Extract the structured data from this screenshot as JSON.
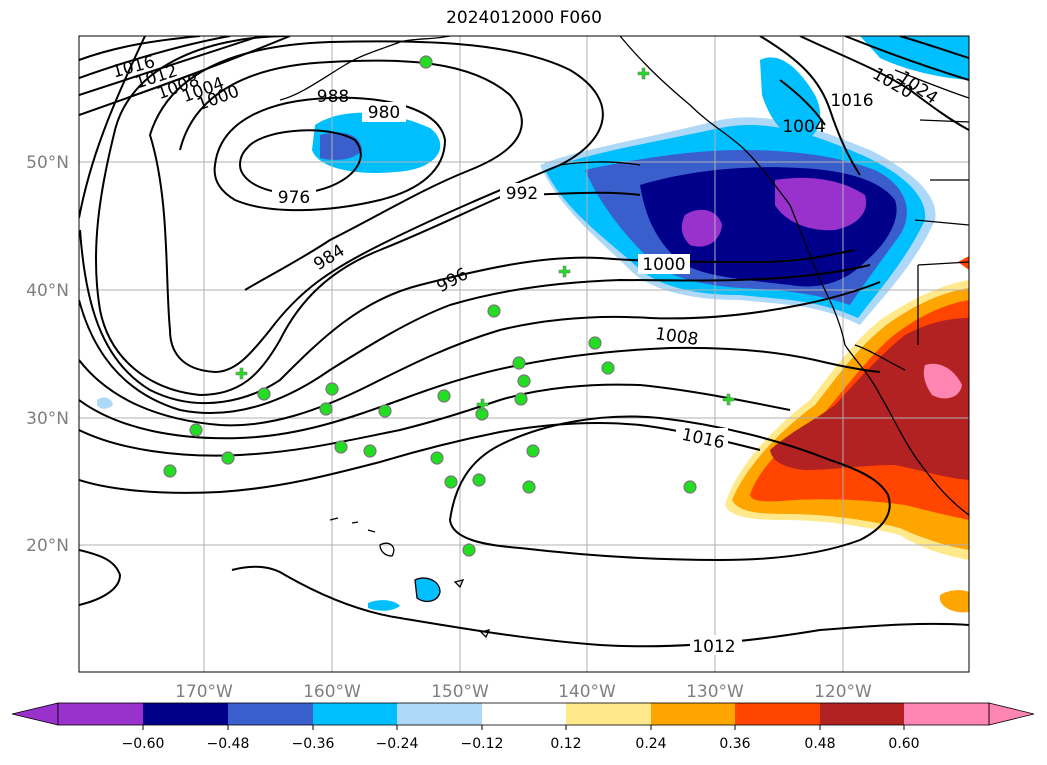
{
  "title": "2024012000 F060",
  "axes": {
    "lat_labels": [
      "50°N",
      "40°N",
      "30°N",
      "20°N"
    ],
    "lon_labels": [
      "170°W",
      "160°W",
      "150°W",
      "140°W",
      "130°W",
      "120°W"
    ]
  },
  "isobars": [
    {
      "label": "976"
    },
    {
      "label": "980"
    },
    {
      "label": "984"
    },
    {
      "label": "988"
    },
    {
      "label": "992"
    },
    {
      "label": "996"
    },
    {
      "label": "1000"
    },
    {
      "label": "1004"
    },
    {
      "label": "1008"
    },
    {
      "label": "1012"
    },
    {
      "label": "1016"
    },
    {
      "label": "1020"
    },
    {
      "label": "1024"
    }
  ],
  "colorbar": {
    "ticks": [
      "−0.60",
      "−0.48",
      "−0.36",
      "−0.24",
      "−0.12",
      "0.12",
      "0.24",
      "0.36",
      "0.48",
      "0.60"
    ],
    "colors": [
      "#9932cc",
      "#00008b",
      "#3a5fcd",
      "#00bfff",
      "#add8f7",
      "#ffffff",
      "#ffe98a",
      "#ffa500",
      "#ff4500",
      "#b22222",
      "#ff85b3",
      "#ff85b3"
    ],
    "extend": "both"
  },
  "colors": {
    "land_coast": "#000000",
    "station_marker": "#22dd22",
    "grid": "#b0b0b0"
  }
}
